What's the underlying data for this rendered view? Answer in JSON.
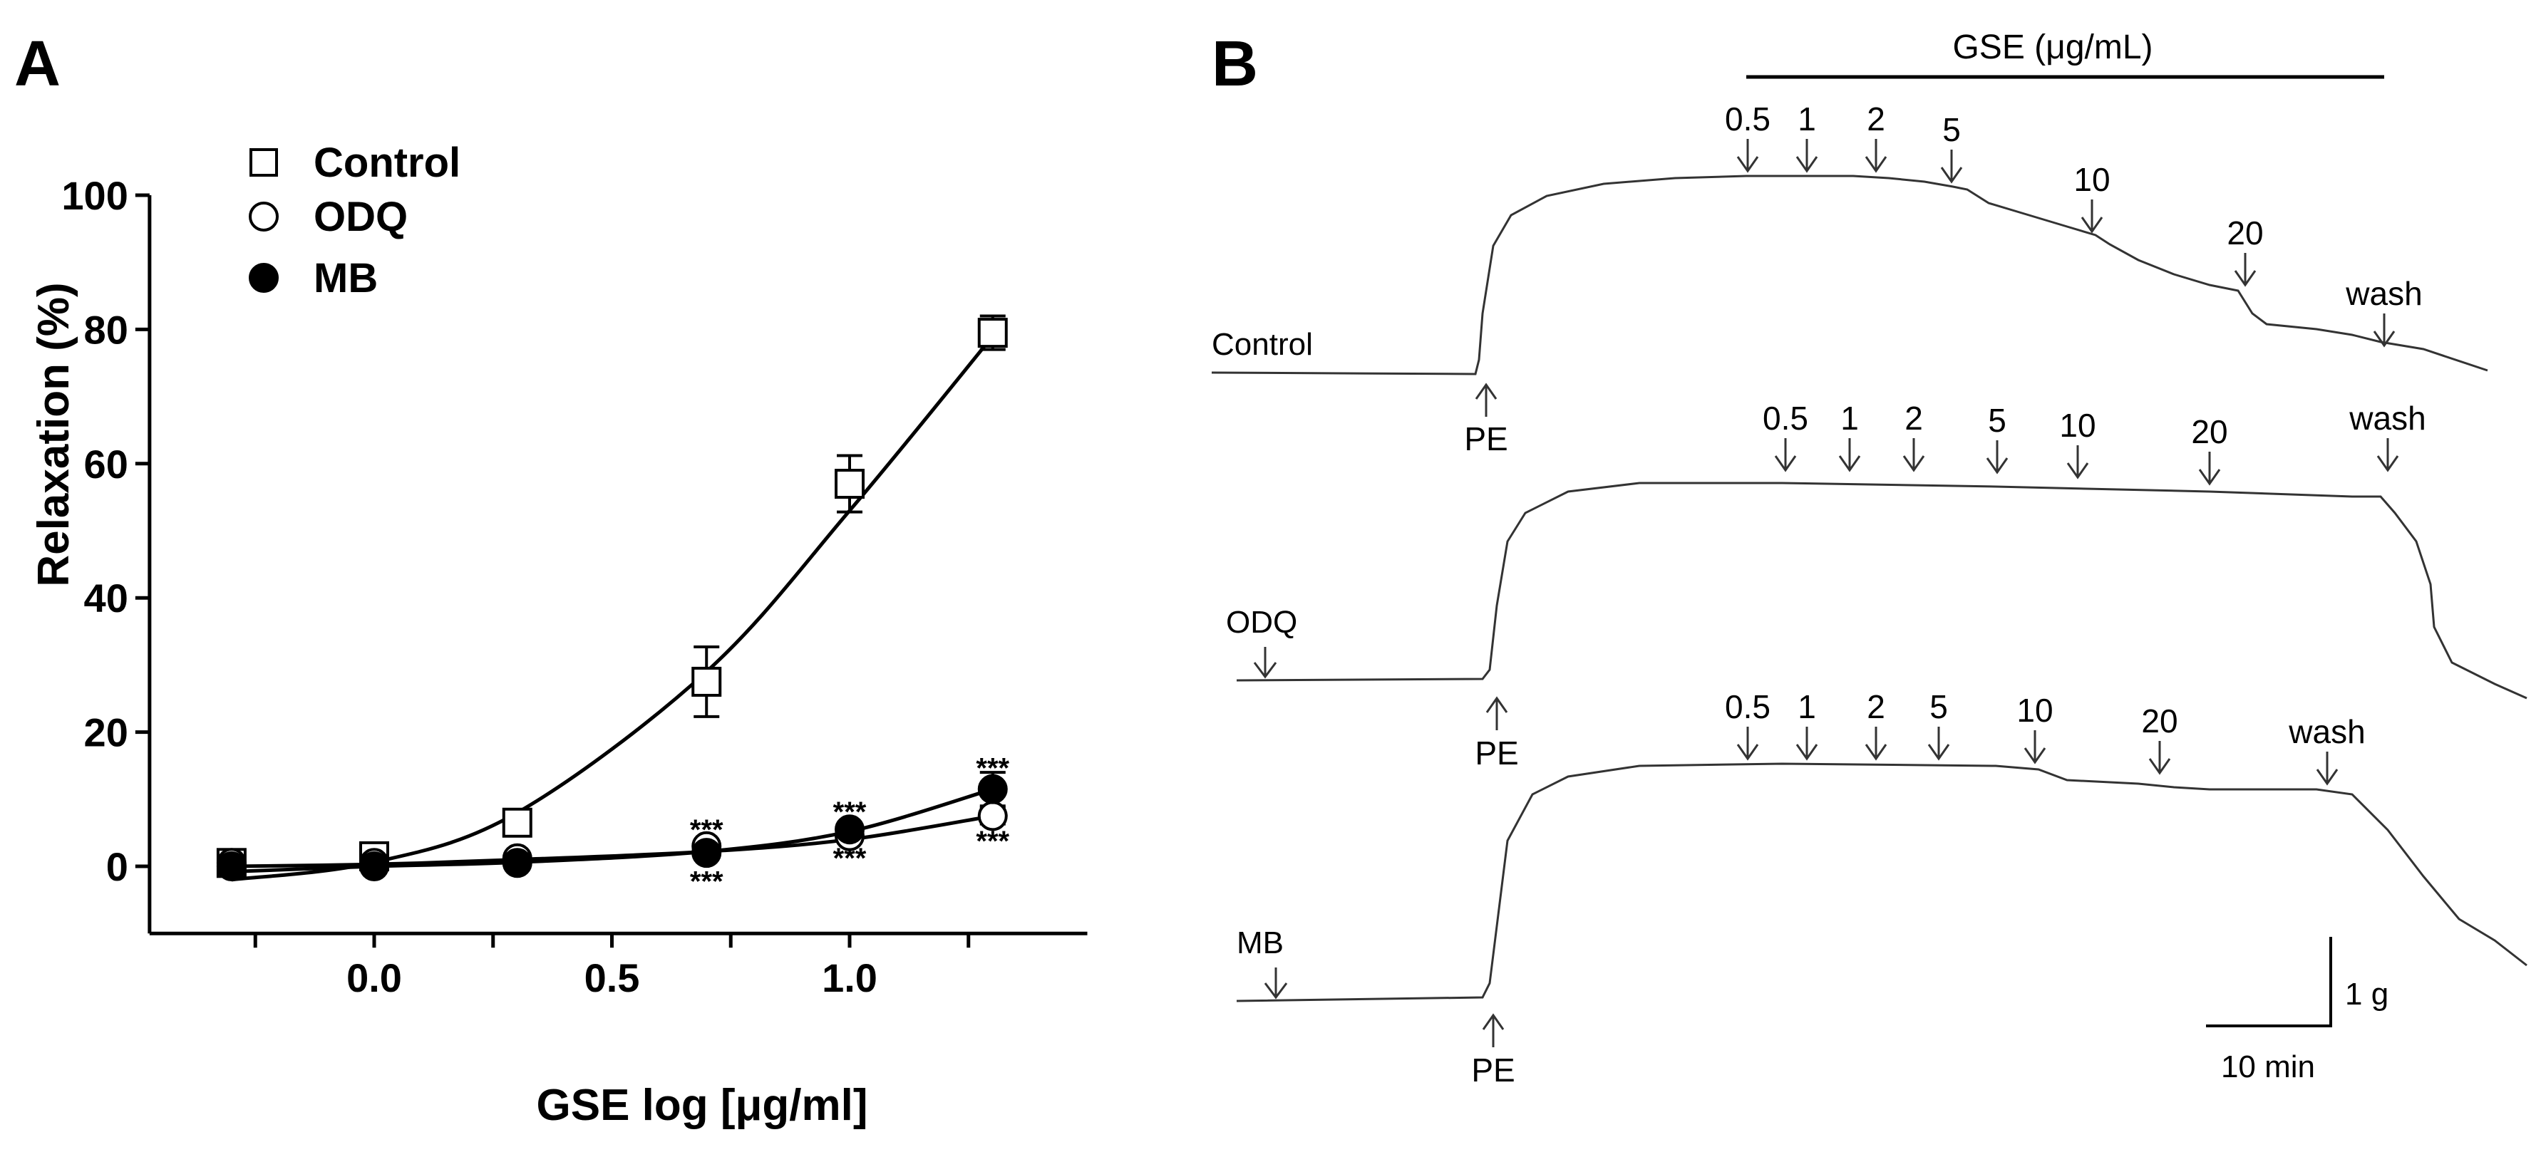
{
  "panel_a": {
    "label": "A",
    "chart_data": {
      "type": "scatter",
      "xlabel": "GSE log [μg/ml]",
      "ylabel": "Relaxation (%)",
      "xlim": [
        -0.45,
        1.5
      ],
      "ylim": [
        -10,
        100
      ],
      "xticks": [
        0.0,
        0.5,
        1.0
      ],
      "xtick_labels": [
        "0.0",
        "0.5",
        "1.0"
      ],
      "yticks": [
        0,
        20,
        40,
        60,
        80,
        100
      ],
      "ytick_labels": [
        "0",
        "20",
        "40",
        "60",
        "80",
        "100"
      ],
      "legend_position": "top-left",
      "series": [
        {
          "name": "Control",
          "marker": "open-square",
          "x": [
            -0.3,
            0.0,
            0.301,
            0.699,
            1.0,
            1.301
          ],
          "y": [
            0.5,
            1.5,
            6.5,
            27.5,
            57,
            79.5
          ],
          "err": [
            0,
            0,
            0,
            5.2,
            4.2,
            2.5
          ],
          "fit": [
            -2.0,
            0.6,
            8.0,
            29.0,
            53.0,
            79.0
          ]
        },
        {
          "name": "ODQ",
          "marker": "open-circle",
          "x": [
            -0.3,
            0.0,
            0.301,
            0.699,
            1.0,
            1.301
          ],
          "y": [
            0.5,
            0.5,
            1.2,
            3.0,
            4.5,
            7.5
          ],
          "err": [
            0,
            0,
            0,
            0,
            0,
            1.2
          ],
          "fit": [
            0.0,
            0.3,
            1.0,
            2.2,
            4.0,
            7.5
          ]
        },
        {
          "name": "MB",
          "marker": "filled-circle",
          "x": [
            -0.3,
            0.0,
            0.301,
            0.699,
            1.0,
            1.301
          ],
          "y": [
            0.0,
            0.0,
            0.5,
            2.0,
            5.5,
            11.5
          ],
          "err": [
            0,
            0,
            0,
            0,
            0,
            2.5
          ],
          "fit": [
            -0.8,
            0.0,
            0.6,
            2.2,
            5.2,
            11.5
          ]
        }
      ],
      "annotations": [
        {
          "text": "***",
          "x": 0.699,
          "y": 5.5
        },
        {
          "text": "***",
          "x": 0.699,
          "y": -2.2
        },
        {
          "text": "***",
          "x": 1.0,
          "y": 8.2
        },
        {
          "text": "***",
          "x": 1.0,
          "y": 1.3
        },
        {
          "text": "***",
          "x": 1.301,
          "y": 14.7
        },
        {
          "text": "***",
          "x": 1.301,
          "y": 3.8
        }
      ]
    }
  },
  "panel_b": {
    "label": "B",
    "gse_bar_label": "GSE (μg/mL)",
    "scale_bar": {
      "vertical": "1 g",
      "horizontal": "10 min"
    },
    "traces": [
      {
        "name": "Control",
        "pe_label": "PE",
        "wash_label": "wash",
        "doses": [
          "0.5",
          "1",
          "2",
          "5",
          "10",
          "20"
        ]
      },
      {
        "name": "ODQ",
        "pe_label": "PE",
        "wash_label": "wash",
        "doses": [
          "0.5",
          "1",
          "2",
          "5",
          "10",
          "20"
        ]
      },
      {
        "name": "MB",
        "pe_label": "PE",
        "wash_label": "wash",
        "doses": [
          "0.5",
          "1",
          "2",
          "5",
          "10",
          "20"
        ]
      }
    ]
  }
}
